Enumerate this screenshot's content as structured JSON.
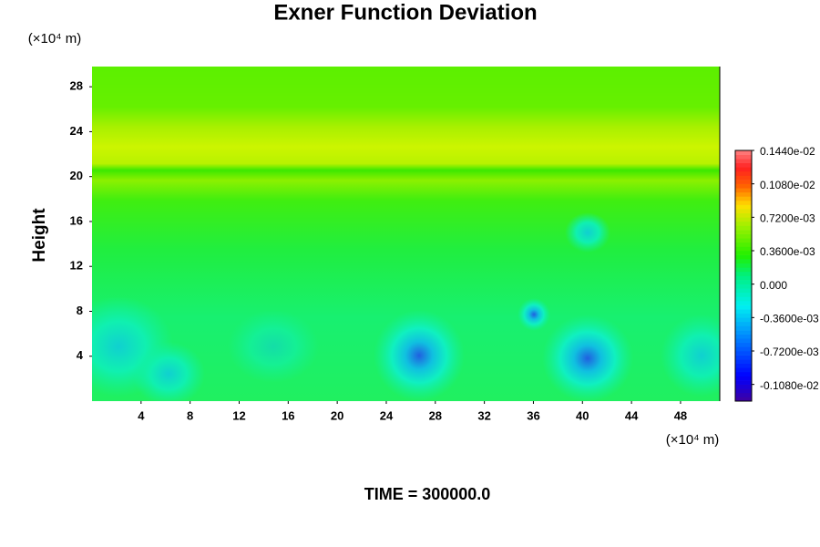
{
  "chart_data": {
    "type": "contour",
    "title": "Exner Function Deviation",
    "x_unit": "(×10⁴ m)",
    "y_unit": "(×10⁴ m)",
    "ylabel": "Height",
    "footer": "TIME = 300000.0",
    "xlim": [
      0,
      51.2
    ],
    "ylim": [
      0,
      29.8
    ],
    "xticks": [
      4,
      8,
      12,
      16,
      20,
      24,
      28,
      32,
      36,
      40,
      44,
      48
    ],
    "yticks": [
      4,
      8,
      12,
      16,
      20,
      24,
      28
    ],
    "clim": [
      -0.00126,
      0.00144
    ],
    "cticks": [
      {
        "value": 0.00144,
        "label": "0.1440e-02"
      },
      {
        "value": 0.00108,
        "label": "0.1080e-02"
      },
      {
        "value": 0.00072,
        "label": "0.7200e-03"
      },
      {
        "value": 0.00036,
        "label": "0.3600e-03"
      },
      {
        "value": 0,
        "label": "0.000"
      },
      {
        "value": -0.00036,
        "label": "-0.3600e-03"
      },
      {
        "value": -0.00072,
        "label": "-0.7200e-03"
      },
      {
        "value": -0.00108,
        "label": "-0.1080e-02"
      }
    ]
  }
}
